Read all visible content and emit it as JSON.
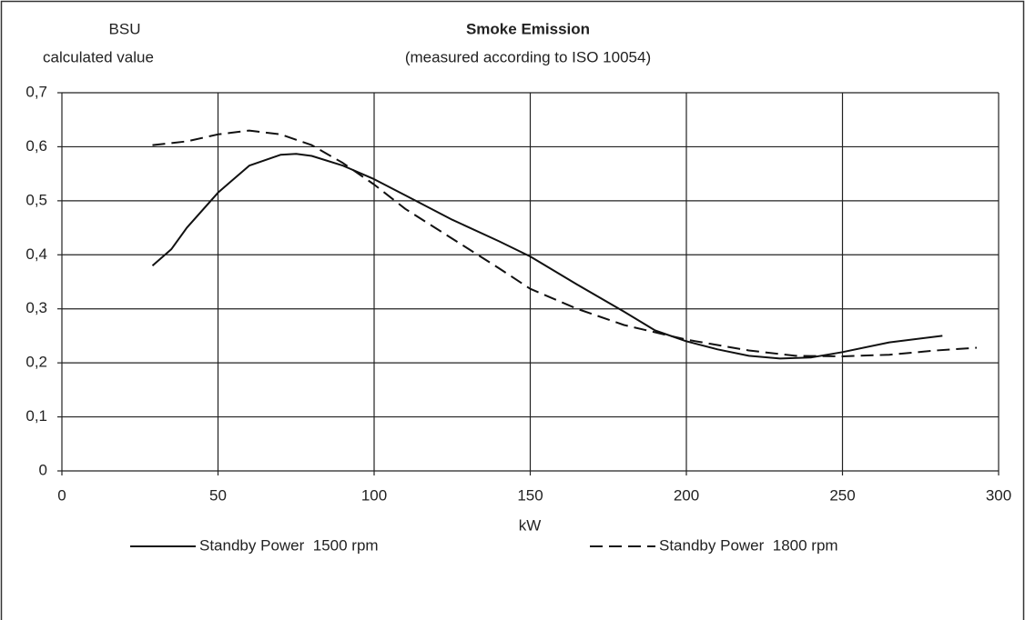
{
  "chart_data": {
    "type": "line",
    "title": "Smoke Emission",
    "subtitle": "(measured according to ISO 10054)",
    "y_label": [
      "BSU",
      "calculated value"
    ],
    "x_label": "kW",
    "xlim": [
      0,
      300
    ],
    "xticks": [
      0,
      50,
      100,
      150,
      200,
      250,
      300
    ],
    "ylim": [
      0,
      0.7
    ],
    "yticks": [
      0,
      {
        "value": 0.1,
        "label": "0,1"
      },
      {
        "value": 0.2,
        "label": "0,2"
      },
      {
        "value": 0.3,
        "label": "0,3"
      },
      {
        "value": 0.4,
        "label": "0,4"
      },
      {
        "value": 0.5,
        "label": "0,5"
      },
      {
        "value": 0.6,
        "label": "0,6"
      },
      {
        "value": 0.7,
        "label": "0,7"
      }
    ],
    "grid": true,
    "series": [
      {
        "name": "Standby Power  1500 rpm",
        "color": "#111111",
        "dash": "solid",
        "x": [
          29,
          35,
          40,
          50,
          60,
          70,
          75,
          80,
          90,
          100,
          110,
          125,
          140,
          150,
          165,
          180,
          190,
          200,
          210,
          220,
          230,
          240,
          250,
          265,
          282
        ],
        "values": [
          0.38,
          0.41,
          0.45,
          0.515,
          0.565,
          0.585,
          0.587,
          0.583,
          0.565,
          0.54,
          0.51,
          0.465,
          0.425,
          0.397,
          0.345,
          0.295,
          0.26,
          0.24,
          0.225,
          0.213,
          0.208,
          0.21,
          0.22,
          0.238,
          0.25
        ]
      },
      {
        "name": "Standby Power  1800 rpm",
        "color": "#111111",
        "dash": "dashed",
        "x": [
          29,
          40,
          50,
          60,
          70,
          80,
          90,
          100,
          110,
          125,
          140,
          150,
          165,
          180,
          200,
          220,
          235,
          250,
          265,
          280,
          293
        ],
        "values": [
          0.603,
          0.61,
          0.623,
          0.63,
          0.623,
          0.603,
          0.57,
          0.53,
          0.485,
          0.43,
          0.375,
          0.337,
          0.3,
          0.27,
          0.243,
          0.223,
          0.213,
          0.212,
          0.215,
          0.223,
          0.228
        ]
      }
    ]
  }
}
